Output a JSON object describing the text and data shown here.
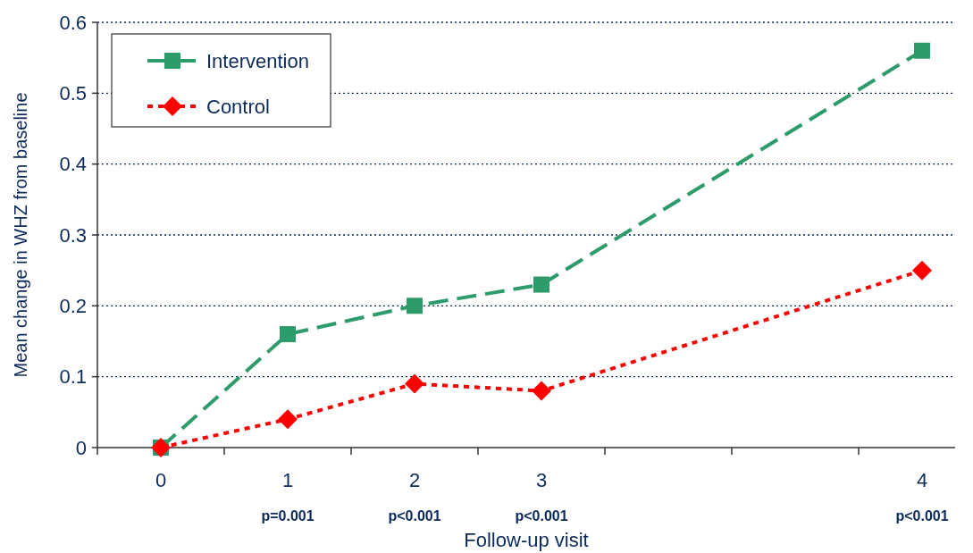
{
  "chart_data": {
    "type": "line",
    "xlabel": "Follow-up visit",
    "ylabel": "Mean change in WHZ from baseline",
    "categories": [
      "0",
      "1",
      "2",
      "3",
      null,
      null,
      "4"
    ],
    "series": [
      {
        "name": "Intervention",
        "color": "#2e9b6a",
        "x": [
          "0",
          "1",
          "2",
          "3",
          "4"
        ],
        "values": [
          0,
          0.16,
          0.2,
          0.23,
          0.56
        ],
        "marker": "square",
        "line_style": "dashed"
      },
      {
        "name": "Control",
        "color": "#ff0000",
        "x": [
          "0",
          "1",
          "2",
          "3",
          "4"
        ],
        "values": [
          0,
          0.04,
          0.09,
          0.08,
          0.25
        ],
        "marker": "diamond",
        "line_style": "dotted"
      }
    ],
    "ylim": [
      0,
      0.6
    ],
    "yticks": [
      0,
      0.1,
      0.2,
      0.3,
      0.4,
      0.5,
      0.6
    ],
    "grid": "y",
    "legend": "top left",
    "annotations": [
      "p=0.001",
      "p<0.001",
      "p<0.001",
      "p<0.001"
    ]
  }
}
